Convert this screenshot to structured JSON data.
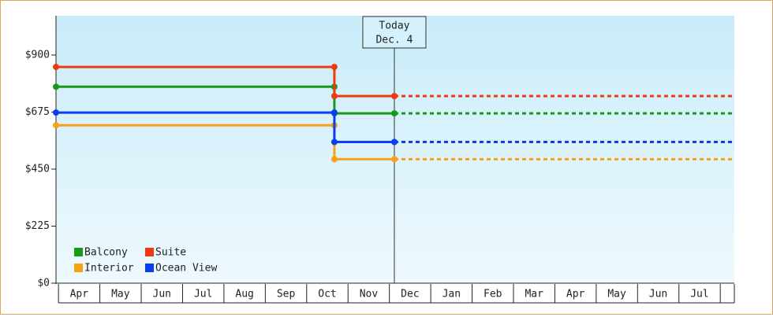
{
  "chart_data": {
    "type": "step-line",
    "categories": [
      "Apr",
      "May",
      "Jun",
      "Jul",
      "Aug",
      "Sep",
      "Oct",
      "Nov",
      "Dec",
      "Jan",
      "Feb",
      "Mar",
      "Apr",
      "May",
      "Jun",
      "Jul"
    ],
    "x": [
      -0.06,
      6.67,
      6.67,
      8.12,
      16.34
    ],
    "xlim": [
      -0.06,
      16.34
    ],
    "ylim": [
      0,
      1055
    ],
    "yticks": [
      {
        "value": 0,
        "label": "$0"
      },
      {
        "value": 225,
        "label": "$225"
      },
      {
        "value": 450,
        "label": "$450"
      },
      {
        "value": 675,
        "label": "$675"
      },
      {
        "value": 900,
        "label": "$900"
      }
    ],
    "annotation": {
      "lines": [
        "Today",
        "Dec. 4"
      ],
      "x": 8.12
    },
    "legend": "lower left",
    "series": [
      {
        "name": "Balcony",
        "color": "#189a18",
        "values": [
          775,
          775,
          670,
          670,
          670
        ]
      },
      {
        "name": "Suite",
        "color": "#ee3a12",
        "values": [
          853,
          853,
          738,
          738,
          738
        ]
      },
      {
        "name": "Interior",
        "color": "#f5a315",
        "values": [
          623,
          623,
          489,
          489,
          489
        ]
      },
      {
        "name": "Ocean View",
        "color": "#0a3ef0",
        "values": [
          673,
          673,
          557,
          557,
          557
        ]
      }
    ]
  }
}
